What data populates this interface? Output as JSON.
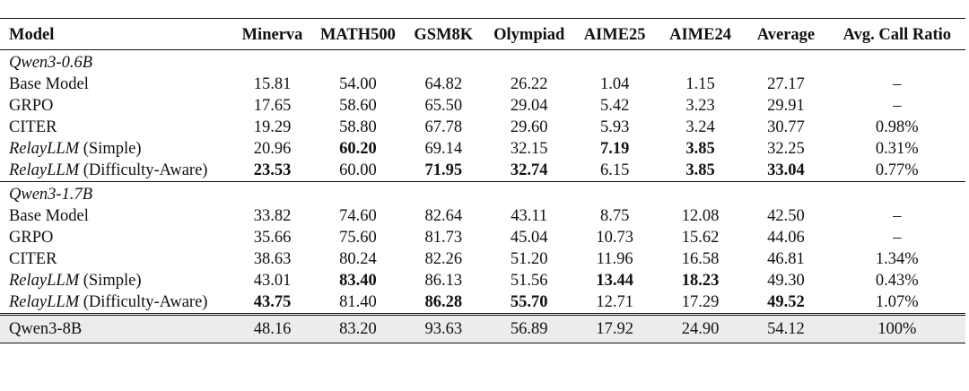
{
  "table": {
    "headers": [
      "Model",
      "Minerva",
      "MATH500",
      "GSM8K",
      "Olympiad",
      "AIME25",
      "AIME24",
      "Average",
      "Avg. Call Ratio"
    ],
    "groups": [
      {
        "title": "Qwen3-0.6B",
        "rows": [
          {
            "name": "Base Model",
            "name_italic": "",
            "name_suffix": "",
            "values": [
              "15.81",
              "54.00",
              "64.82",
              "26.22",
              "1.04",
              "1.15",
              "27.17",
              "–"
            ],
            "bold": [
              false,
              false,
              false,
              false,
              false,
              false,
              false,
              false
            ]
          },
          {
            "name": "GRPO",
            "name_italic": "",
            "name_suffix": "",
            "values": [
              "17.65",
              "58.60",
              "65.50",
              "29.04",
              "5.42",
              "3.23",
              "29.91",
              "–"
            ],
            "bold": [
              false,
              false,
              false,
              false,
              false,
              false,
              false,
              false
            ]
          },
          {
            "name": "CITER",
            "name_italic": "",
            "name_suffix": "",
            "values": [
              "19.29",
              "58.80",
              "67.78",
              "29.60",
              "5.93",
              "3.24",
              "30.77",
              "0.98%"
            ],
            "bold": [
              false,
              false,
              false,
              false,
              false,
              false,
              false,
              false
            ]
          },
          {
            "name": "",
            "name_italic": "RelayLLM",
            "name_suffix": " (Simple)",
            "values": [
              "20.96",
              "60.20",
              "69.14",
              "32.15",
              "7.19",
              "3.85",
              "32.25",
              "0.31%"
            ],
            "bold": [
              false,
              true,
              false,
              false,
              true,
              true,
              false,
              false
            ]
          },
          {
            "name": "",
            "name_italic": "RelayLLM",
            "name_suffix": " (Difficulty-Aware)",
            "values": [
              "23.53",
              "60.00",
              "71.95",
              "32.74",
              "6.15",
              "3.85",
              "33.04",
              "0.77%"
            ],
            "bold": [
              true,
              false,
              true,
              true,
              false,
              true,
              true,
              false
            ]
          }
        ]
      },
      {
        "title": "Qwen3-1.7B",
        "rows": [
          {
            "name": "Base Model",
            "name_italic": "",
            "name_suffix": "",
            "values": [
              "33.82",
              "74.60",
              "82.64",
              "43.11",
              "8.75",
              "12.08",
              "42.50",
              "–"
            ],
            "bold": [
              false,
              false,
              false,
              false,
              false,
              false,
              false,
              false
            ]
          },
          {
            "name": "GRPO",
            "name_italic": "",
            "name_suffix": "",
            "values": [
              "35.66",
              "75.60",
              "81.73",
              "45.04",
              "10.73",
              "15.62",
              "44.06",
              "–"
            ],
            "bold": [
              false,
              false,
              false,
              false,
              false,
              false,
              false,
              false
            ]
          },
          {
            "name": "CITER",
            "name_italic": "",
            "name_suffix": "",
            "values": [
              "38.63",
              "80.24",
              "82.26",
              "51.20",
              "11.96",
              "16.58",
              "46.81",
              "1.34%"
            ],
            "bold": [
              false,
              false,
              false,
              false,
              false,
              false,
              false,
              false
            ]
          },
          {
            "name": "",
            "name_italic": "RelayLLM",
            "name_suffix": " (Simple)",
            "values": [
              "43.01",
              "83.40",
              "86.13",
              "51.56",
              "13.44",
              "18.23",
              "49.30",
              "0.43%"
            ],
            "bold": [
              false,
              true,
              false,
              false,
              true,
              true,
              false,
              false
            ]
          },
          {
            "name": "",
            "name_italic": "RelayLLM",
            "name_suffix": " (Difficulty-Aware)",
            "values": [
              "43.75",
              "81.40",
              "86.28",
              "55.70",
              "12.71",
              "17.29",
              "49.52",
              "1.07%"
            ],
            "bold": [
              true,
              false,
              true,
              true,
              false,
              false,
              true,
              false
            ]
          }
        ]
      }
    ],
    "reference": {
      "name": "Qwen3-8B",
      "values": [
        "48.16",
        "83.20",
        "93.63",
        "56.89",
        "17.92",
        "24.90",
        "54.12",
        "100%"
      ]
    },
    "colors": {
      "reference_row_bg": "#ececec",
      "text": "#111111",
      "rules": "#111111"
    }
  }
}
